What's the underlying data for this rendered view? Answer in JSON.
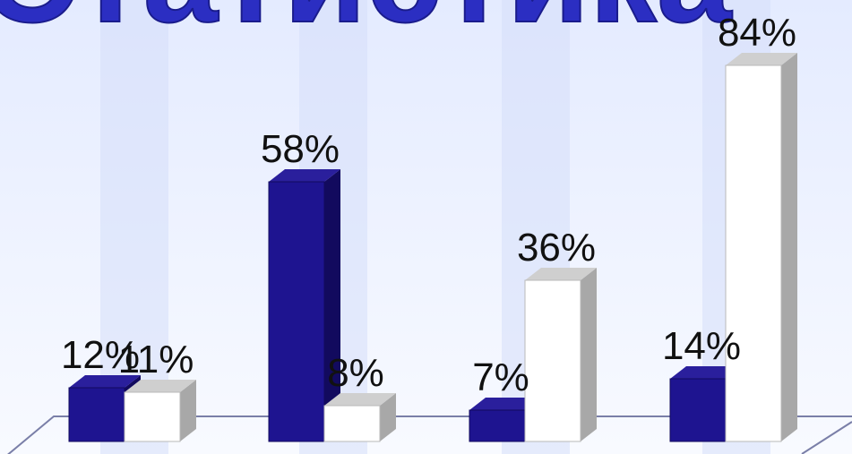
{
  "title": "Статистика",
  "colors": {
    "series_a_front": "#1e1490",
    "series_a_side": "#120a5e",
    "series_a_top": "#2a1f9c",
    "series_b_front": "#ffffff",
    "series_b_side": "#a8a8a8",
    "series_b_top": "#cfcfcf",
    "floor_line": "#7a7fa8",
    "band": "#d5defa"
  },
  "chart_data": {
    "type": "bar",
    "categories": [
      "",
      "",
      "",
      ""
    ],
    "series": [
      {
        "values": [
          12,
          58,
          7,
          14
        ],
        "labels": [
          "12%",
          "58%",
          "7%",
          "14%"
        ]
      },
      {
        "values": [
          11,
          8,
          36,
          84
        ],
        "labels": [
          "11%",
          "8%",
          "36%",
          "84%"
        ]
      }
    ],
    "title": "Статистика",
    "xlabel": "",
    "ylabel": "",
    "ylim": [
      0,
      88
    ],
    "grid": false,
    "legend": "none",
    "style": "3d-column"
  }
}
